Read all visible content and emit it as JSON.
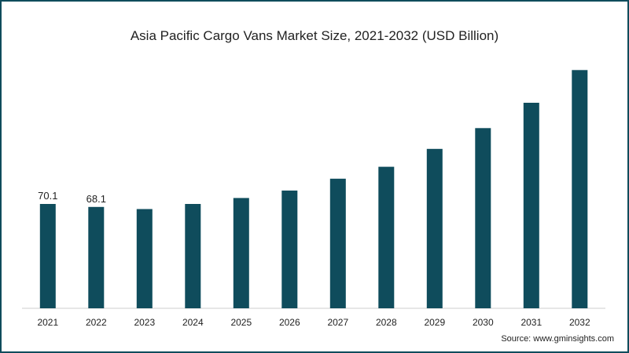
{
  "chart_data": {
    "type": "bar",
    "title": "Asia Pacific Cargo Vans Market Size, 2021-2032 (USD Billion)",
    "categories": [
      "2021",
      "2022",
      "2023",
      "2024",
      "2025",
      "2026",
      "2027",
      "2028",
      "2029",
      "2030",
      "2031",
      "2032"
    ],
    "values": [
      70.1,
      68.1,
      66.7,
      70.1,
      74.1,
      79.1,
      87.1,
      95.1,
      107.1,
      121.1,
      138.1,
      160.1
    ],
    "data_labels": {
      "2021": "70.1",
      "2022": "68.1"
    },
    "xlabel": "",
    "ylabel": "",
    "ylim": [
      0,
      165
    ],
    "grid": false,
    "bar_color": "#0f4c5c"
  },
  "source": "Source: www.gminsights.com",
  "colors": {
    "frame": "#0f4c5c",
    "bar": "#0f4c5c",
    "text": "#222222"
  }
}
